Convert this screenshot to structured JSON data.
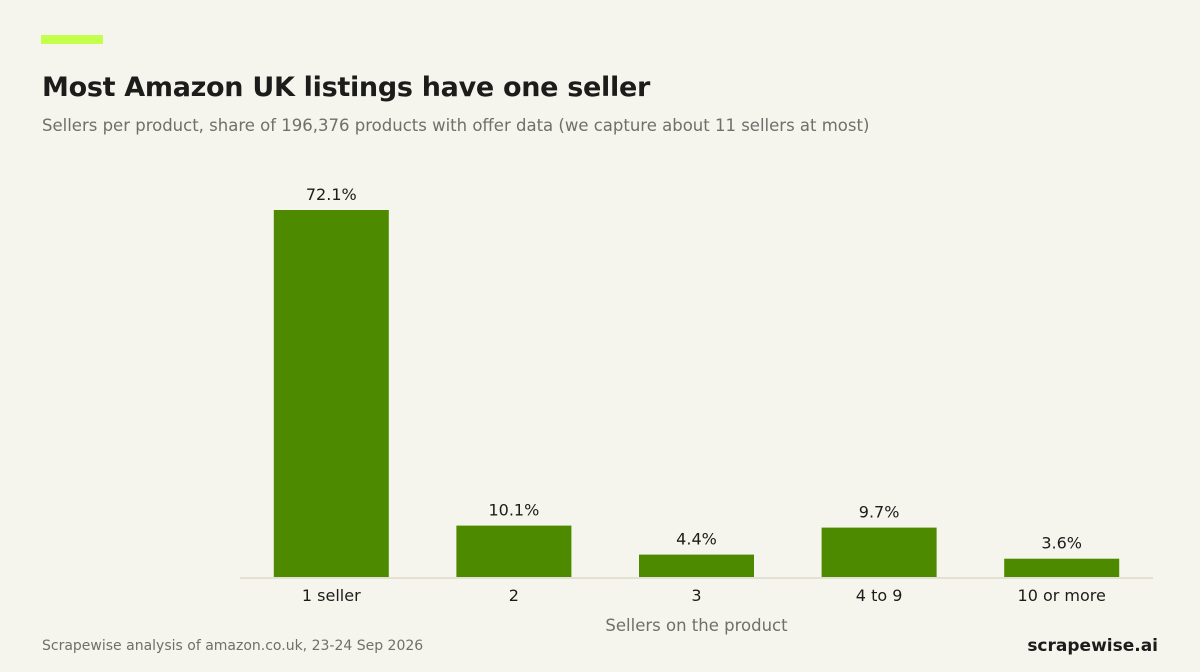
{
  "header": {
    "title": "Most Amazon UK listings have one seller",
    "subtitle": "Sellers per product, share of 196,376 products with offer data (we capture about 11 sellers at most)"
  },
  "footer": {
    "source": "Scrapewise analysis of amazon.co.uk, 23-24 Sep 2026",
    "brand": "scrapewise.ai"
  },
  "colors": {
    "accent": "#c4ff4d",
    "bar": "#4e8a00",
    "background": "#f5f4ed",
    "baseline": "#e2e1d4"
  },
  "chart_data": {
    "type": "bar",
    "categories": [
      "1 seller",
      "2",
      "3",
      "4 to 9",
      "10 or more"
    ],
    "values": [
      72.1,
      10.1,
      4.4,
      9.7,
      3.6
    ],
    "value_labels": [
      "72.1%",
      "10.1%",
      "4.4%",
      "9.7%",
      "3.6%"
    ],
    "xlabel": "Sellers on the product",
    "ylabel": "",
    "ylim": [
      0,
      75
    ],
    "grid": false,
    "legend": "none"
  }
}
